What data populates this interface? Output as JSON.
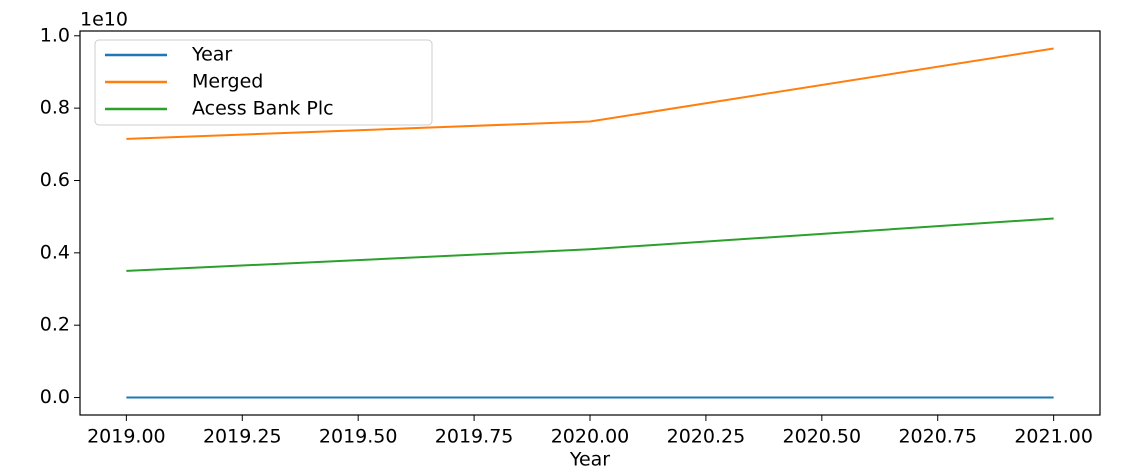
{
  "chart_data": {
    "type": "line",
    "x": [
      2019,
      2020,
      2021
    ],
    "series": [
      {
        "name": "Year",
        "color": "#1f77b4",
        "values": [
          2019,
          2020,
          2021
        ]
      },
      {
        "name": "Merged",
        "color": "#ff7f0e",
        "values": [
          7150000000,
          7630000000,
          9650000000
        ]
      },
      {
        "name": "Acess Bank Plc",
        "color": "#2ca02c",
        "values": [
          3500000000,
          4100000000,
          4950000000
        ]
      }
    ],
    "x_label": "Year",
    "y_offset_label": "1e10",
    "xlim": [
      2018.9,
      2021.1
    ],
    "xticks": [
      {
        "value": 2019,
        "label": "2019.00"
      },
      {
        "value": 2019.25,
        "label": "2019.25"
      },
      {
        "value": 2019.5,
        "label": "2019.50"
      },
      {
        "value": 2019.75,
        "label": "2019.75"
      },
      {
        "value": 2020,
        "label": "2020.00"
      },
      {
        "value": 2020.25,
        "label": "2020.25"
      },
      {
        "value": 2020.5,
        "label": "2020.50"
      },
      {
        "value": 2020.75,
        "label": "2020.75"
      },
      {
        "value": 2021,
        "label": "2021.00"
      }
    ],
    "ylim": [
      -482500000,
      10132500000
    ],
    "yticks": [
      {
        "value": 0,
        "label": "0.0"
      },
      {
        "value": 2000000000,
        "label": "0.2"
      },
      {
        "value": 4000000000,
        "label": "0.4"
      },
      {
        "value": 6000000000,
        "label": "0.6"
      },
      {
        "value": 8000000000,
        "label": "0.8"
      },
      {
        "value": 10000000000,
        "label": "1.0"
      }
    ],
    "legend": "upper left",
    "grid": false
  }
}
